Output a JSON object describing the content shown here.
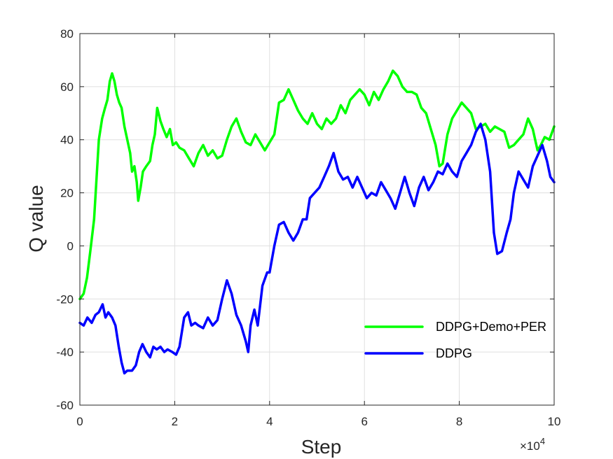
{
  "chart_data": {
    "type": "line",
    "title": "",
    "xlabel": "Step",
    "ylabel": "Q value",
    "x_exponent_label": "×10",
    "x_exponent_power": "4",
    "xlim": [
      0,
      100000
    ],
    "ylim": [
      -60,
      80
    ],
    "grid": true,
    "legend_position": "lower-right",
    "xticks": [
      {
        "value": 0,
        "label": "0"
      },
      {
        "value": 20000,
        "label": "2"
      },
      {
        "value": 40000,
        "label": "4"
      },
      {
        "value": 60000,
        "label": "6"
      },
      {
        "value": 80000,
        "label": "8"
      },
      {
        "value": 100000,
        "label": "10"
      }
    ],
    "yticks": [
      {
        "value": -60,
        "label": "-60"
      },
      {
        "value": -40,
        "label": "-40"
      },
      {
        "value": -20,
        "label": "-20"
      },
      {
        "value": 0,
        "label": "0"
      },
      {
        "value": 20,
        "label": "20"
      },
      {
        "value": 40,
        "label": "40"
      },
      {
        "value": 60,
        "label": "60"
      },
      {
        "value": 80,
        "label": "80"
      }
    ],
    "series": [
      {
        "name": "DDPG+Demo+PER",
        "color": "#00ff00",
        "points": [
          [
            0,
            -20
          ],
          [
            800,
            -18
          ],
          [
            1500,
            -12
          ],
          [
            2200,
            -2
          ],
          [
            3000,
            10
          ],
          [
            3500,
            25
          ],
          [
            4000,
            40
          ],
          [
            4700,
            48
          ],
          [
            5300,
            52
          ],
          [
            5800,
            55
          ],
          [
            6300,
            62
          ],
          [
            6800,
            65
          ],
          [
            7300,
            62
          ],
          [
            7800,
            57
          ],
          [
            8300,
            54
          ],
          [
            8800,
            52
          ],
          [
            9400,
            45
          ],
          [
            10000,
            40
          ],
          [
            10600,
            35
          ],
          [
            11000,
            28
          ],
          [
            11500,
            30
          ],
          [
            12000,
            24
          ],
          [
            12300,
            17
          ],
          [
            12800,
            22
          ],
          [
            13300,
            28
          ],
          [
            14000,
            30
          ],
          [
            14800,
            32
          ],
          [
            15300,
            38
          ],
          [
            15800,
            42
          ],
          [
            16300,
            52
          ],
          [
            17000,
            47
          ],
          [
            17600,
            44
          ],
          [
            18300,
            41
          ],
          [
            19000,
            44
          ],
          [
            19600,
            38
          ],
          [
            20300,
            39
          ],
          [
            21000,
            37
          ],
          [
            22000,
            36
          ],
          [
            23000,
            33
          ],
          [
            24000,
            30
          ],
          [
            25000,
            35
          ],
          [
            26000,
            38
          ],
          [
            27000,
            34
          ],
          [
            28000,
            36
          ],
          [
            29000,
            33
          ],
          [
            30000,
            34
          ],
          [
            31000,
            40
          ],
          [
            32000,
            45
          ],
          [
            33000,
            48
          ],
          [
            34000,
            43
          ],
          [
            35000,
            39
          ],
          [
            36000,
            38
          ],
          [
            37000,
            42
          ],
          [
            38000,
            39
          ],
          [
            39000,
            36
          ],
          [
            40000,
            39
          ],
          [
            41000,
            42
          ],
          [
            42000,
            54
          ],
          [
            43000,
            55
          ],
          [
            44000,
            59
          ],
          [
            45000,
            55
          ],
          [
            46000,
            51
          ],
          [
            47000,
            48
          ],
          [
            48000,
            46
          ],
          [
            49000,
            50
          ],
          [
            50000,
            46
          ],
          [
            51000,
            44
          ],
          [
            52000,
            48
          ],
          [
            53000,
            46
          ],
          [
            54000,
            48
          ],
          [
            55000,
            53
          ],
          [
            56000,
            50
          ],
          [
            57000,
            55
          ],
          [
            58000,
            57
          ],
          [
            59000,
            59
          ],
          [
            60000,
            57
          ],
          [
            61000,
            53
          ],
          [
            62000,
            58
          ],
          [
            63000,
            55
          ],
          [
            64000,
            59
          ],
          [
            65000,
            62
          ],
          [
            66000,
            66
          ],
          [
            67000,
            64
          ],
          [
            68000,
            60
          ],
          [
            69000,
            58
          ],
          [
            70000,
            58
          ],
          [
            71000,
            57
          ],
          [
            72000,
            52
          ],
          [
            73000,
            50
          ],
          [
            74000,
            44
          ],
          [
            75000,
            38
          ],
          [
            75800,
            30
          ],
          [
            76500,
            31
          ],
          [
            77500,
            42
          ],
          [
            78500,
            48
          ],
          [
            79500,
            51
          ],
          [
            80500,
            54
          ],
          [
            81500,
            52
          ],
          [
            82500,
            50
          ],
          [
            83500,
            44
          ],
          [
            84500,
            45
          ],
          [
            85500,
            46
          ],
          [
            86500,
            43
          ],
          [
            87500,
            45
          ],
          [
            88500,
            44
          ],
          [
            89500,
            43
          ],
          [
            90500,
            37
          ],
          [
            91500,
            38
          ],
          [
            92500,
            40
          ],
          [
            93500,
            42
          ],
          [
            94500,
            48
          ],
          [
            95500,
            44
          ],
          [
            96500,
            36
          ],
          [
            97200,
            38
          ],
          [
            98000,
            41
          ],
          [
            99000,
            40
          ],
          [
            100000,
            45
          ]
        ]
      },
      {
        "name": "DDPG",
        "color": "#0000ff",
        "points": [
          [
            0,
            -29
          ],
          [
            800,
            -30
          ],
          [
            1600,
            -27
          ],
          [
            2500,
            -29
          ],
          [
            3300,
            -26
          ],
          [
            4000,
            -25
          ],
          [
            4800,
            -22
          ],
          [
            5400,
            -27
          ],
          [
            6000,
            -25
          ],
          [
            6800,
            -27
          ],
          [
            7500,
            -30
          ],
          [
            8200,
            -38
          ],
          [
            8800,
            -44
          ],
          [
            9400,
            -48
          ],
          [
            10000,
            -47
          ],
          [
            11000,
            -47
          ],
          [
            11800,
            -45
          ],
          [
            12500,
            -40
          ],
          [
            13200,
            -37
          ],
          [
            14000,
            -40
          ],
          [
            14800,
            -42
          ],
          [
            15500,
            -38
          ],
          [
            16200,
            -39
          ],
          [
            17000,
            -38
          ],
          [
            17800,
            -40
          ],
          [
            18500,
            -39
          ],
          [
            19500,
            -40
          ],
          [
            20300,
            -41
          ],
          [
            21000,
            -38
          ],
          [
            22000,
            -27
          ],
          [
            22800,
            -25
          ],
          [
            23500,
            -30
          ],
          [
            24300,
            -29
          ],
          [
            25000,
            -30
          ],
          [
            26000,
            -31
          ],
          [
            27000,
            -27
          ],
          [
            28000,
            -30
          ],
          [
            29000,
            -28
          ],
          [
            30000,
            -20
          ],
          [
            31000,
            -13
          ],
          [
            32000,
            -18
          ],
          [
            33000,
            -26
          ],
          [
            34000,
            -30
          ],
          [
            35000,
            -36
          ],
          [
            35500,
            -40
          ],
          [
            36000,
            -30
          ],
          [
            36800,
            -24
          ],
          [
            37500,
            -30
          ],
          [
            38500,
            -15
          ],
          [
            39500,
            -10
          ],
          [
            40000,
            -10
          ],
          [
            41000,
            0
          ],
          [
            42000,
            8
          ],
          [
            43000,
            9
          ],
          [
            44000,
            5
          ],
          [
            45000,
            2
          ],
          [
            46000,
            5
          ],
          [
            47000,
            10
          ],
          [
            47800,
            10
          ],
          [
            48500,
            18
          ],
          [
            49500,
            20
          ],
          [
            50500,
            22
          ],
          [
            51500,
            26
          ],
          [
            52500,
            30
          ],
          [
            53500,
            35
          ],
          [
            54500,
            28
          ],
          [
            55500,
            25
          ],
          [
            56500,
            26
          ],
          [
            57500,
            22
          ],
          [
            58500,
            26
          ],
          [
            59500,
            22
          ],
          [
            60500,
            18
          ],
          [
            61500,
            20
          ],
          [
            62500,
            19
          ],
          [
            63500,
            24
          ],
          [
            64500,
            21
          ],
          [
            65500,
            18
          ],
          [
            66500,
            14
          ],
          [
            67500,
            20
          ],
          [
            68500,
            26
          ],
          [
            69500,
            20
          ],
          [
            70500,
            15
          ],
          [
            71500,
            22
          ],
          [
            72500,
            26
          ],
          [
            73500,
            21
          ],
          [
            74500,
            24
          ],
          [
            75500,
            28
          ],
          [
            76500,
            27
          ],
          [
            77500,
            31
          ],
          [
            78500,
            28
          ],
          [
            79500,
            26
          ],
          [
            80500,
            32
          ],
          [
            81500,
            35
          ],
          [
            82500,
            38
          ],
          [
            83500,
            43
          ],
          [
            84500,
            46
          ],
          [
            85500,
            40
          ],
          [
            86500,
            28
          ],
          [
            87300,
            5
          ],
          [
            88000,
            -3
          ],
          [
            89000,
            -2
          ],
          [
            90000,
            5
          ],
          [
            90800,
            10
          ],
          [
            91500,
            20
          ],
          [
            92500,
            28
          ],
          [
            93500,
            25
          ],
          [
            94500,
            22
          ],
          [
            95500,
            30
          ],
          [
            96500,
            34
          ],
          [
            97500,
            38
          ],
          [
            98500,
            32
          ],
          [
            99200,
            26
          ],
          [
            100000,
            24
          ]
        ]
      }
    ]
  }
}
